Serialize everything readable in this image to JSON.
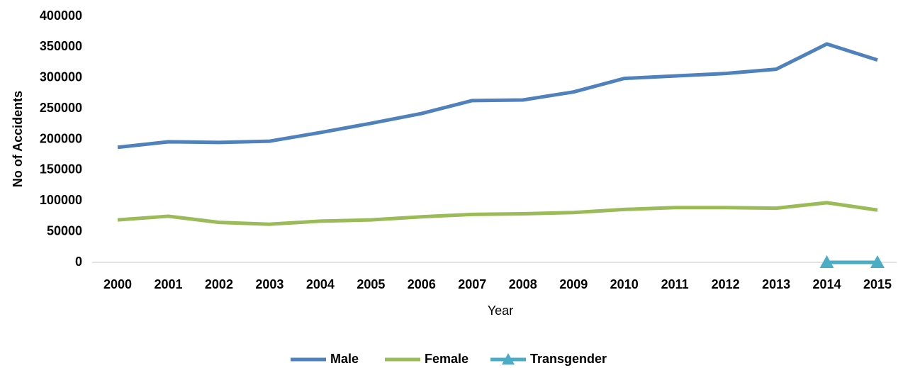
{
  "chart_data": {
    "type": "line",
    "x_label": "Year",
    "y_label": "No of Accidents",
    "categories": [
      "2000",
      "2001",
      "2002",
      "2003",
      "2004",
      "2005",
      "2006",
      "2007",
      "2008",
      "2009",
      "2010",
      "2011",
      "2012",
      "2013",
      "2014",
      "2015"
    ],
    "series": [
      {
        "name": "Male",
        "color": "#4f81bd",
        "values": [
          187000,
          196000,
          195000,
          197000,
          211000,
          226000,
          242000,
          263000,
          264000,
          277000,
          299000,
          303000,
          307000,
          314000,
          355000,
          329000
        ]
      },
      {
        "name": "Female",
        "color": "#9bbb59",
        "values": [
          69000,
          75000,
          65000,
          62000,
          67000,
          69000,
          74000,
          78000,
          79000,
          81000,
          86000,
          89000,
          89000,
          88000,
          97000,
          85000
        ]
      },
      {
        "name": "Transgender",
        "color": "#4bacc6",
        "marker": "triangle",
        "values": [
          null,
          null,
          null,
          null,
          null,
          null,
          null,
          null,
          null,
          null,
          null,
          null,
          null,
          null,
          0,
          0
        ]
      }
    ],
    "ylim": [
      0,
      400000
    ],
    "yticks": [
      0,
      50000,
      100000,
      150000,
      200000,
      250000,
      300000,
      350000,
      400000
    ],
    "grid": false,
    "legend": "bottom"
  }
}
